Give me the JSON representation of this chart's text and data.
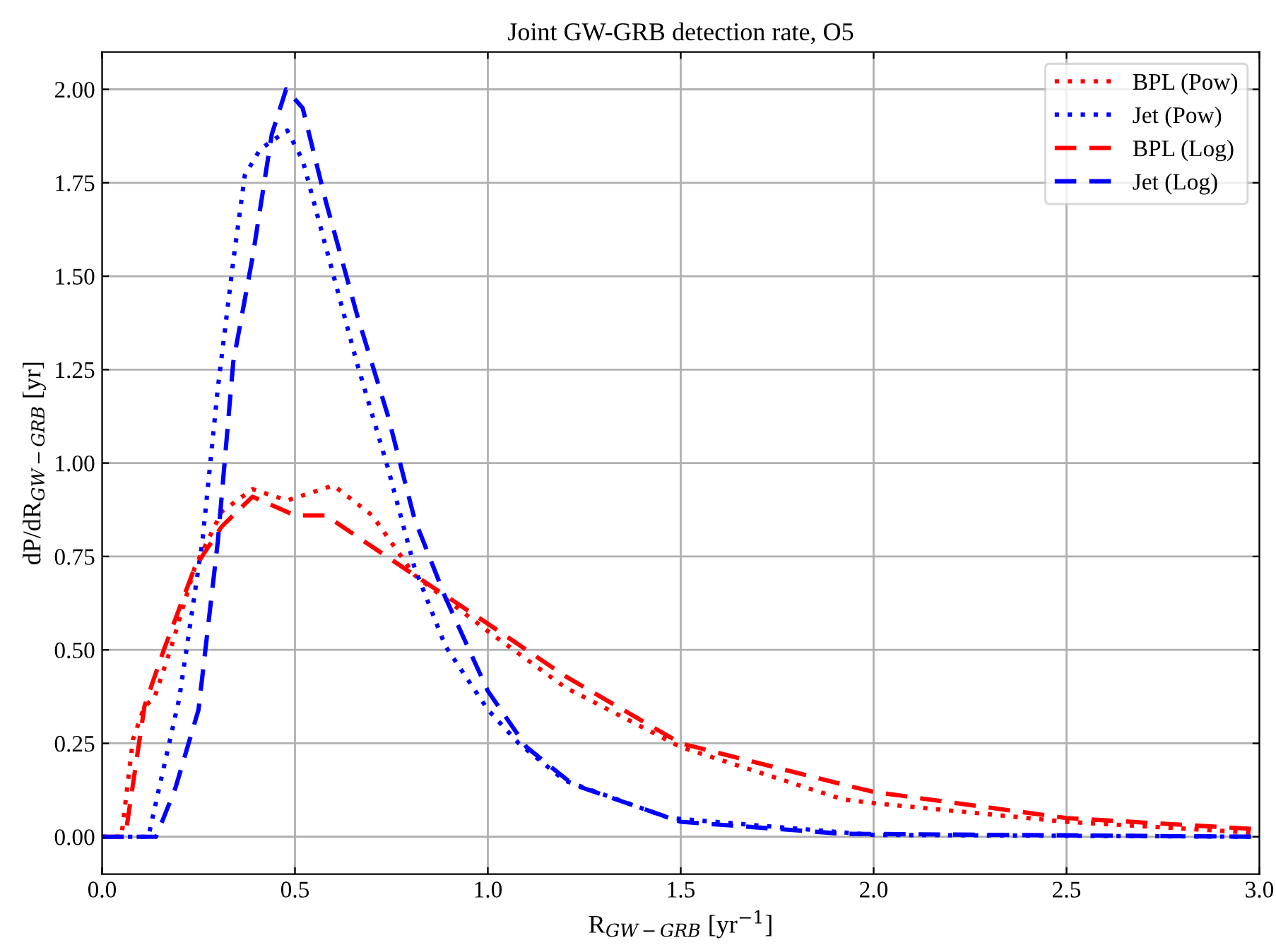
{
  "chart_data": {
    "type": "line",
    "title": "Joint GW-GRB detection rate, O5",
    "xlabel": "R$_{GW−GRB}$ [yr$^{−1}$]",
    "ylabel": "dP/dR$_{GW−GRB}$ [yr]",
    "xlim": [
      0.0,
      3.0
    ],
    "ylim": [
      -0.1,
      2.1
    ],
    "xticks": [
      {
        "value": 0,
        "label": "0.0"
      },
      {
        "value": 0.5,
        "label": "0.5"
      },
      {
        "value": 1,
        "label": "1.0"
      },
      {
        "value": 1.5,
        "label": "1.5"
      },
      {
        "value": 2,
        "label": "2.0"
      },
      {
        "value": 2.5,
        "label": "2.5"
      },
      {
        "value": 3,
        "label": "3.0"
      }
    ],
    "yticks": [
      {
        "value": 0,
        "label": "0.00"
      },
      {
        "value": 0.25,
        "label": "0.25"
      },
      {
        "value": 0.5,
        "label": "0.50"
      },
      {
        "value": 0.75,
        "label": "0.75"
      },
      {
        "value": 1,
        "label": "1.00"
      },
      {
        "value": 1.25,
        "label": "1.25"
      },
      {
        "value": 1.5,
        "label": "1.50"
      },
      {
        "value": 1.75,
        "label": "1.75"
      },
      {
        "value": 2,
        "label": "2.00"
      }
    ],
    "grid": true,
    "legend": "top right",
    "marker": "none",
    "series": [
      {
        "name": "BPL (Pow)",
        "color": "#ff0000",
        "line_style": "dotted",
        "x": [
          0,
          0.05,
          0.08,
          0.11,
          0.135,
          0.18,
          0.24,
          0.31,
          0.39,
          0.48,
          0.6,
          0.7,
          0.81,
          1.0,
          1.2,
          1.5,
          1.92,
          2.0,
          2.5,
          3.0
        ],
        "values": [
          0,
          0,
          0.26,
          0.35,
          0.37,
          0.51,
          0.72,
          0.87,
          0.93,
          0.9,
          0.94,
          0.86,
          0.7,
          0.55,
          0.4,
          0.24,
          0.1,
          0.09,
          0.04,
          0.01
        ]
      },
      {
        "name": "Jet (Pow)",
        "color": "#0000ff",
        "line_style": "dotted",
        "x": [
          0,
          0.12,
          0.15,
          0.2,
          0.26,
          0.3,
          0.34,
          0.37,
          0.41,
          0.48,
          0.52,
          0.59,
          0.66,
          0.74,
          0.81,
          0.89,
          1.0,
          1.08,
          1.2,
          1.47,
          2.0,
          3.0
        ],
        "values": [
          0,
          0,
          0.14,
          0.37,
          0.79,
          1.2,
          1.54,
          1.77,
          1.84,
          1.89,
          1.81,
          1.54,
          1.27,
          0.99,
          0.72,
          0.51,
          0.34,
          0.25,
          0.15,
          0.05,
          0.005,
          0
        ]
      },
      {
        "name": "BPL (Log)",
        "color": "#ff0000",
        "line_style": "dashed",
        "x": [
          0,
          0.06,
          0.11,
          0.16,
          0.24,
          0.31,
          0.39,
          0.5,
          0.58,
          0.68,
          0.81,
          1.0,
          1.2,
          1.5,
          1.92,
          2.0,
          2.5,
          3.0
        ],
        "values": [
          0,
          0,
          0.35,
          0.5,
          0.72,
          0.83,
          0.91,
          0.86,
          0.86,
          0.79,
          0.7,
          0.57,
          0.43,
          0.25,
          0.14,
          0.12,
          0.05,
          0.02
        ]
      },
      {
        "name": "Jet (Log)",
        "color": "#0000ff",
        "line_style": "dashed",
        "x": [
          0,
          0.14,
          0.19,
          0.25,
          0.3,
          0.34,
          0.39,
          0.44,
          0.477,
          0.52,
          0.58,
          0.66,
          0.74,
          0.81,
          0.89,
          1.0,
          1.1,
          1.22,
          1.5,
          1.92,
          3.0
        ],
        "values": [
          0,
          0,
          0.13,
          0.34,
          0.79,
          1.27,
          1.55,
          1.88,
          2.0,
          1.95,
          1.7,
          1.4,
          1.13,
          0.85,
          0.64,
          0.39,
          0.24,
          0.14,
          0.04,
          0.008,
          0
        ]
      }
    ]
  }
}
